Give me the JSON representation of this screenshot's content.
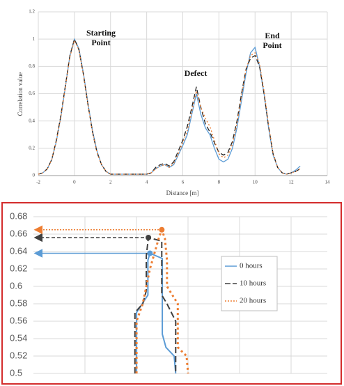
{
  "chart_data": [
    {
      "type": "line",
      "xlabel": "Distance [m]",
      "ylabel": "Correlation value",
      "xlim": [
        -2,
        14
      ],
      "xticks": [
        -2,
        0,
        2,
        4,
        6,
        8,
        10,
        12,
        14
      ],
      "ylim": [
        0,
        1.2
      ],
      "yticks": [
        0,
        0.2,
        0.4,
        0.6,
        0.8,
        1,
        1.2
      ],
      "grid": true,
      "annotations": [
        "Starting Point",
        "Defect",
        "End Point"
      ],
      "x": [
        -2,
        -1.75,
        -1.5,
        -1.25,
        -1,
        -0.75,
        -0.5,
        -0.25,
        0,
        0.25,
        0.5,
        0.75,
        1,
        1.25,
        1.5,
        1.75,
        2,
        2.25,
        2.5,
        2.75,
        3,
        3.25,
        3.5,
        3.75,
        4,
        4.25,
        4.5,
        4.75,
        5,
        5.25,
        5.5,
        5.75,
        6,
        6.25,
        6.5,
        6.75,
        7,
        7.25,
        7.5,
        7.75,
        8,
        8.25,
        8.5,
        8.75,
        9,
        9.25,
        9.5,
        9.75,
        10,
        10.25,
        10.5,
        10.75,
        11,
        11.25,
        11.5,
        11.75,
        12,
        12.25,
        12.5
      ],
      "series": [
        {
          "color": "#5b9bd5",
          "linestyle": "solid",
          "values": [
            0.01,
            0.02,
            0.05,
            0.12,
            0.25,
            0.43,
            0.65,
            0.88,
            1.0,
            0.93,
            0.75,
            0.53,
            0.33,
            0.18,
            0.08,
            0.03,
            0.01,
            0.01,
            0.01,
            0.01,
            0.01,
            0.01,
            0.01,
            0.01,
            0.01,
            0.02,
            0.05,
            0.07,
            0.08,
            0.06,
            0.08,
            0.15,
            0.22,
            0.3,
            0.45,
            0.6,
            0.45,
            0.35,
            0.3,
            0.2,
            0.12,
            0.1,
            0.12,
            0.2,
            0.35,
            0.55,
            0.75,
            0.9,
            0.94,
            0.8,
            0.6,
            0.35,
            0.15,
            0.06,
            0.02,
            0.01,
            0.02,
            0.04,
            0.07
          ]
        },
        {
          "color": "#222222",
          "linestyle": "dashed",
          "values": [
            0.01,
            0.02,
            0.05,
            0.12,
            0.26,
            0.44,
            0.66,
            0.88,
            1.0,
            0.92,
            0.74,
            0.52,
            0.32,
            0.17,
            0.08,
            0.03,
            0.01,
            0.01,
            0.01,
            0.01,
            0.01,
            0.01,
            0.01,
            0.01,
            0.01,
            0.02,
            0.06,
            0.08,
            0.09,
            0.07,
            0.1,
            0.18,
            0.26,
            0.36,
            0.5,
            0.65,
            0.5,
            0.38,
            0.32,
            0.24,
            0.17,
            0.15,
            0.17,
            0.25,
            0.4,
            0.6,
            0.78,
            0.86,
            0.88,
            0.8,
            0.6,
            0.36,
            0.16,
            0.06,
            0.02,
            0.01,
            0.02,
            0.03,
            0.05
          ]
        },
        {
          "color": "#ed7d31",
          "linestyle": "dotted",
          "values": [
            0.01,
            0.02,
            0.05,
            0.12,
            0.25,
            0.43,
            0.65,
            0.87,
            0.99,
            0.92,
            0.74,
            0.52,
            0.32,
            0.17,
            0.08,
            0.03,
            0.01,
            0.01,
            0.01,
            0.01,
            0.01,
            0.01,
            0.01,
            0.01,
            0.01,
            0.02,
            0.05,
            0.07,
            0.08,
            0.06,
            0.09,
            0.16,
            0.24,
            0.33,
            0.47,
            0.62,
            0.5,
            0.42,
            0.36,
            0.26,
            0.16,
            0.13,
            0.15,
            0.23,
            0.38,
            0.58,
            0.78,
            0.88,
            0.9,
            0.82,
            0.62,
            0.37,
            0.16,
            0.06,
            0.02,
            0.01,
            0.02,
            0.03,
            0.05
          ]
        }
      ]
    },
    {
      "type": "line",
      "xlim": [
        0,
        5.7
      ],
      "ylim": [
        0.5,
        0.68
      ],
      "yticks": [
        0.5,
        0.52,
        0.54,
        0.56,
        0.58,
        0.6,
        0.62,
        0.64,
        0.66,
        0.68
      ],
      "grid": true,
      "legend": "right",
      "series": [
        {
          "name": "0 hours",
          "color": "#5b9bd5",
          "linestyle": "solid",
          "x": [
            2.0,
            2.0,
            2.22,
            2.22,
            2.26,
            2.5,
            2.5,
            2.57,
            2.73,
            2.76
          ],
          "values": [
            0.5,
            0.57,
            0.59,
            0.63,
            0.638,
            0.632,
            0.545,
            0.53,
            0.52,
            0.5
          ]
        },
        {
          "name": "10 hours",
          "color": "#404040",
          "linestyle": "dashed",
          "x": [
            1.97,
            1.97,
            2.12,
            2.19,
            2.19,
            2.23,
            2.49,
            2.49,
            2.59,
            2.76,
            2.76
          ],
          "values": [
            0.5,
            0.57,
            0.58,
            0.595,
            0.635,
            0.656,
            0.652,
            0.59,
            0.58,
            0.56,
            0.5
          ]
        },
        {
          "name": "20 hours",
          "color": "#ed7d31",
          "linestyle": "dotted",
          "x": [
            2.0,
            2.0,
            2.12,
            2.26,
            2.43,
            2.49,
            2.55,
            2.59,
            2.59,
            2.8,
            2.8,
            2.97,
            3.0
          ],
          "values": [
            0.5,
            0.56,
            0.58,
            0.62,
            0.655,
            0.665,
            0.655,
            0.63,
            0.6,
            0.58,
            0.53,
            0.52,
            0.5
          ]
        }
      ]
    }
  ]
}
